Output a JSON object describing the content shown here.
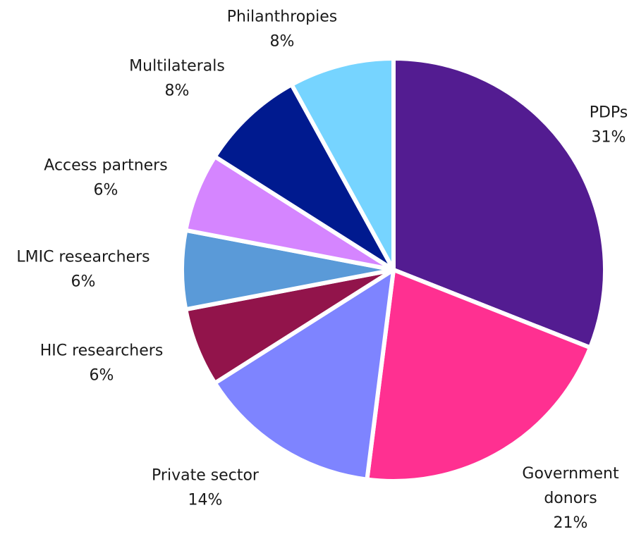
{
  "chart_data": {
    "type": "pie",
    "title": "",
    "start_angle_deg": 0,
    "direction": "clockwise",
    "slices": [
      {
        "label": [
          "PDPs"
        ],
        "value": 31,
        "value_label": "31%",
        "color": "#531c91"
      },
      {
        "label": [
          "Government",
          "donors"
        ],
        "value": 21,
        "value_label": "21%",
        "color": "#ff3091"
      },
      {
        "label": [
          "Private sector"
        ],
        "value": 14,
        "value_label": "14%",
        "color": "#7e84ff"
      },
      {
        "label": [
          "HIC researchers"
        ],
        "value": 6,
        "value_label": "6%",
        "color": "#92144b"
      },
      {
        "label": [
          "LMIC researchers"
        ],
        "value": 6,
        "value_label": "6%",
        "color": "#5a9ad8"
      },
      {
        "label": [
          "Access partners"
        ],
        "value": 6,
        "value_label": "6%",
        "color": "#d585ff"
      },
      {
        "label": [
          "Multilaterals"
        ],
        "value": 8,
        "value_label": "8%",
        "color": "#001a8f"
      },
      {
        "label": [
          "Philanthropies"
        ],
        "value": 8,
        "value_label": "8%",
        "color": "#76d4ff"
      }
    ]
  }
}
